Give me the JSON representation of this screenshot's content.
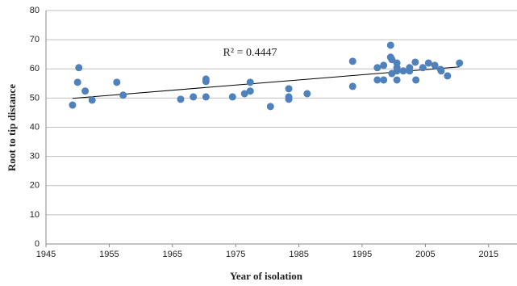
{
  "chart_data": {
    "type": "scatter",
    "xlabel": "Year of isolation",
    "ylabel": "Root to tip distance",
    "annotation": "R² = 0.4447",
    "color": "#4f81bd",
    "grid": true,
    "x": [
      1949.2,
      1950.2,
      1950,
      1951.2,
      1952.3,
      1956.2,
      1957.2,
      1966.3,
      1968.3,
      1970.3,
      1970.3,
      1970.3,
      1974.5,
      1976.4,
      1977.3,
      1977.3,
      1980.5,
      1983.4,
      1983.4,
      1983.4,
      1986.3,
      1993.5,
      1993.5,
      1997.4,
      1997.4,
      1998.4,
      1998.4,
      1999.5,
      1999.5,
      1999.7,
      1999.7,
      2000.5,
      2000.5,
      2000.5,
      2000.5,
      2001.5,
      2002.5,
      2002.5,
      2003.4,
      2003.5,
      2004.6,
      2005.5,
      2006.5,
      2007.4,
      2007.5,
      2008.5,
      2010.4
    ],
    "values": [
      47.6,
      60.4,
      55.4,
      52.4,
      49.3,
      55.4,
      51,
      49.6,
      50.4,
      50.4,
      56.5,
      55.7,
      50.4,
      51.5,
      52.4,
      55.4,
      47.1,
      53.2,
      50.4,
      49.6,
      51.5,
      62.6,
      54,
      60.4,
      56.2,
      61.2,
      56.2,
      68.1,
      64,
      63.2,
      58.4,
      62,
      60.4,
      59.3,
      56.2,
      59.3,
      60.4,
      59.3,
      62.3,
      56.2,
      60.4,
      62,
      61.2,
      59.8,
      59.3,
      57.6,
      62
    ],
    "trendline": {
      "x": [
        1949.2,
        2010.4
      ],
      "values": [
        49.9,
        60.7
      ],
      "color": "#000000"
    },
    "xlim": [
      1945,
      2020
    ],
    "xticks": [
      1945,
      1955,
      1965,
      1975,
      1985,
      1995,
      2005,
      2015
    ],
    "ylim": [
      0,
      80
    ],
    "yticks": [
      0,
      10,
      20,
      30,
      40,
      50,
      60,
      70,
      80
    ]
  }
}
